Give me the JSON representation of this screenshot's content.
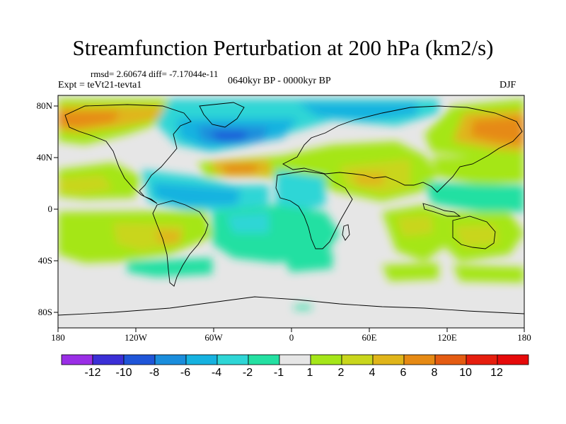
{
  "title": "Streamfunction Perturbation at 200 hPa (km2/s)",
  "stats_line": "rmsd= 2.60674 diff= -7.17044e-11",
  "experiment_line": "Expt = teVt21-tevta1",
  "period_line": "0640kyr BP - 0000kyr BP",
  "season_label": "DJF",
  "colors": {
    "background_field": "#e6e6e6",
    "land_outline": "#000000"
  },
  "map_data": {
    "projection": "cylindrical-equidistant",
    "lon_range": [
      -180,
      180
    ],
    "lat_range": [
      -90,
      90
    ],
    "x_ticks": [
      "180",
      "120W",
      "60W",
      "0",
      "60E",
      "120E",
      "180"
    ],
    "y_ticks": [
      "80N",
      "40N",
      "0",
      "40S",
      "80S"
    ]
  },
  "colorbar": {
    "labels": [
      "-12",
      "-10",
      "-8",
      "-6",
      "-4",
      "-2",
      "-1",
      "1",
      "2",
      "4",
      "6",
      "8",
      "10",
      "12"
    ],
    "colors": [
      "#9a2ee6",
      "#3b2fd6",
      "#1f55d8",
      "#1a8ddc",
      "#16b2e0",
      "#2ed6d6",
      "#24e0a2",
      "#e6e6e6",
      "#a5e619",
      "#c9d61c",
      "#e0b51a",
      "#e68a14",
      "#e45c12",
      "#e61e0e",
      "#e60a0a"
    ]
  }
}
